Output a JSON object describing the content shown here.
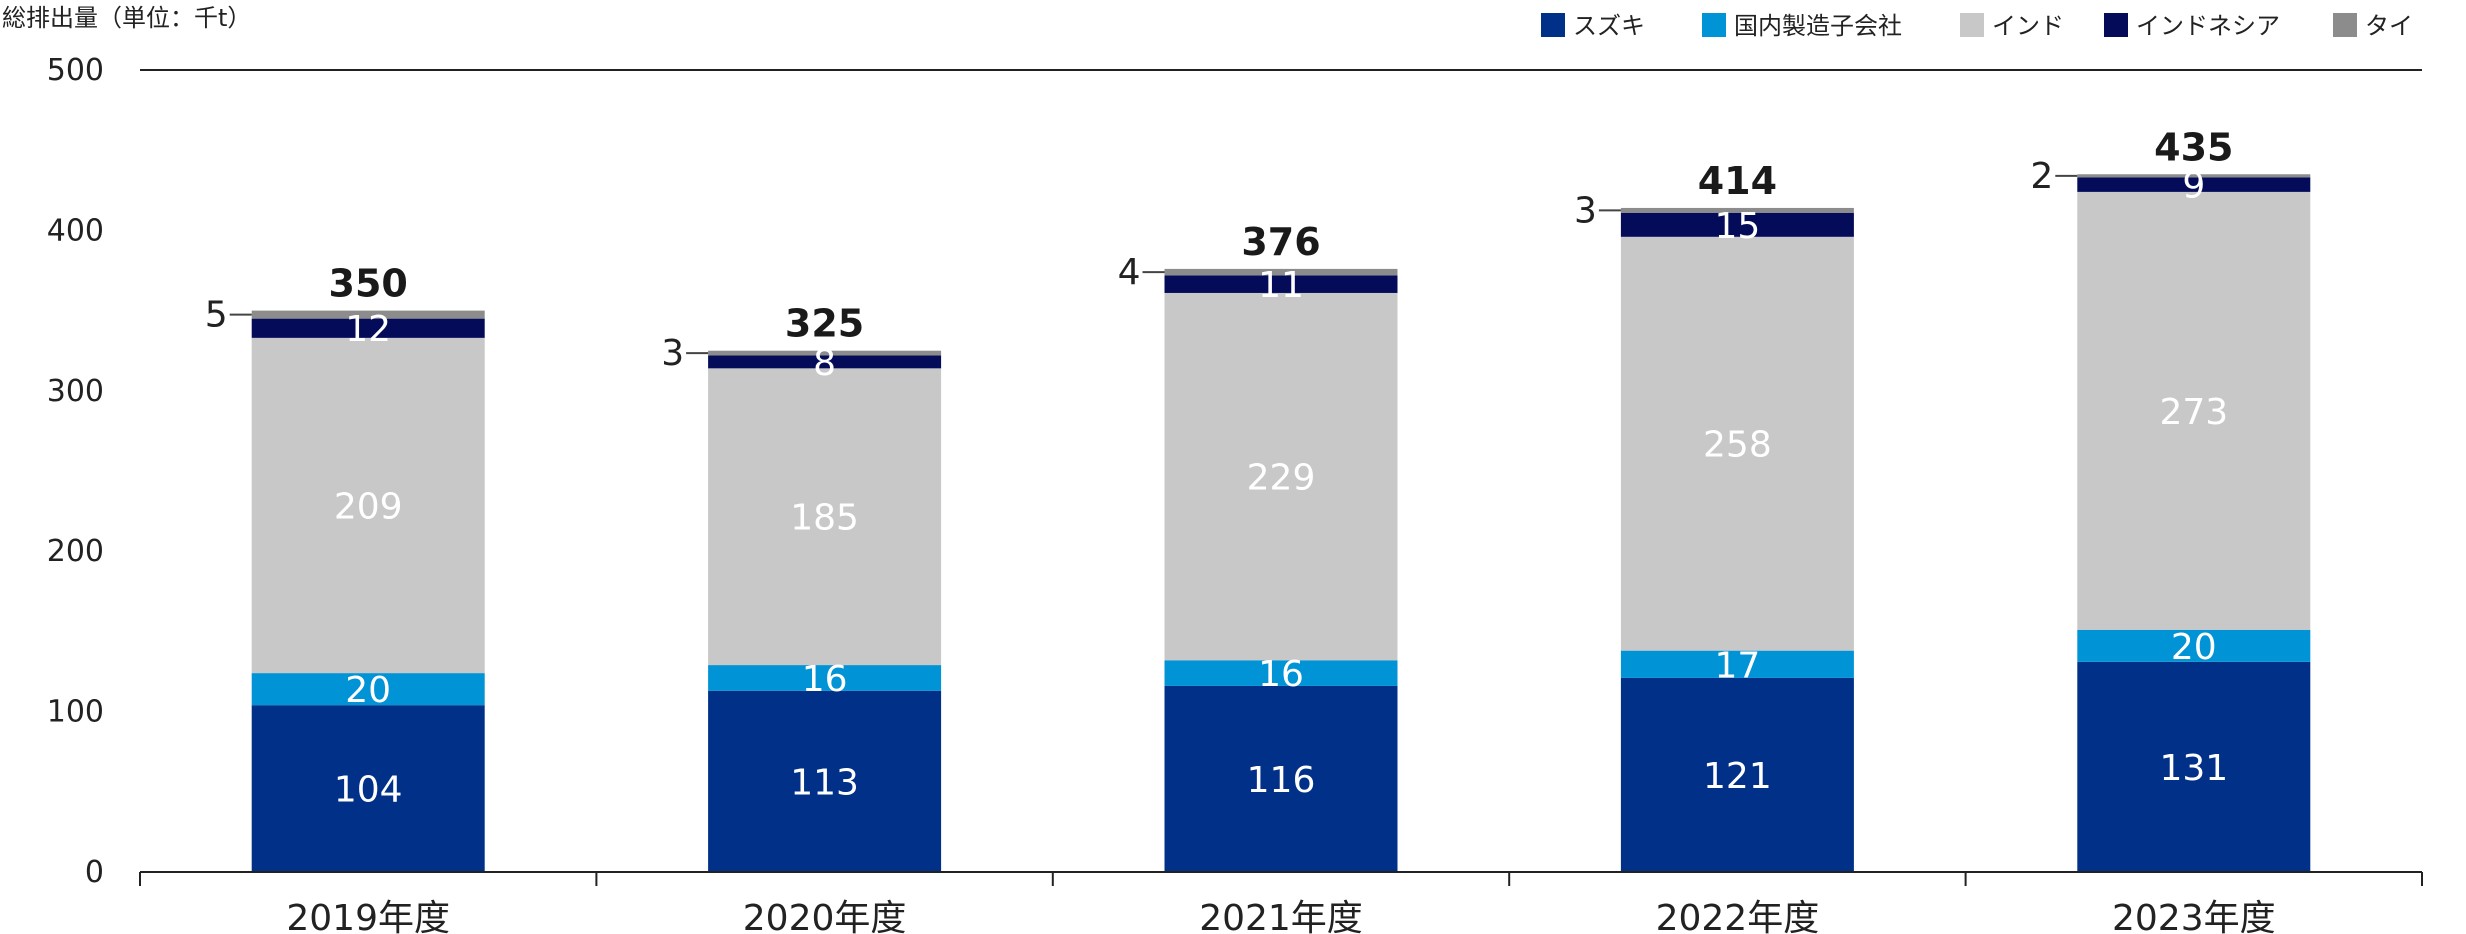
{
  "chart_data": {
    "type": "bar",
    "stacked": true,
    "ylabel": "総排出量（単位：千t）",
    "ylim": [
      0,
      500
    ],
    "yticks": [
      0,
      100,
      200,
      300,
      400,
      500
    ],
    "categories": [
      "2019年度",
      "2020年度",
      "2021年度",
      "2022年度",
      "2023年度"
    ],
    "series": [
      {
        "name": "スズキ",
        "color": "#003087",
        "label_color": "#ffffff",
        "values": [
          104,
          113,
          116,
          121,
          131
        ]
      },
      {
        "name": "国内製造子会社",
        "color": "#0093d5",
        "label_color": "#ffffff",
        "values": [
          20,
          16,
          16,
          17,
          20
        ]
      },
      {
        "name": "インド",
        "color": "#c8c8c8",
        "label_color": "#ffffff",
        "values": [
          209,
          185,
          229,
          258,
          273
        ]
      },
      {
        "name": "インドネシア",
        "color": "#040c5a",
        "label_color": "#ffffff",
        "values": [
          12,
          8,
          11,
          15,
          9
        ]
      },
      {
        "name": "タイ",
        "color": "#8c8c8c",
        "label_color": "#222222",
        "values": [
          5,
          3,
          4,
          3,
          2
        ]
      }
    ],
    "totals": [
      350,
      325,
      376,
      414,
      435
    ],
    "legend_position": "top-right",
    "grid": false
  }
}
